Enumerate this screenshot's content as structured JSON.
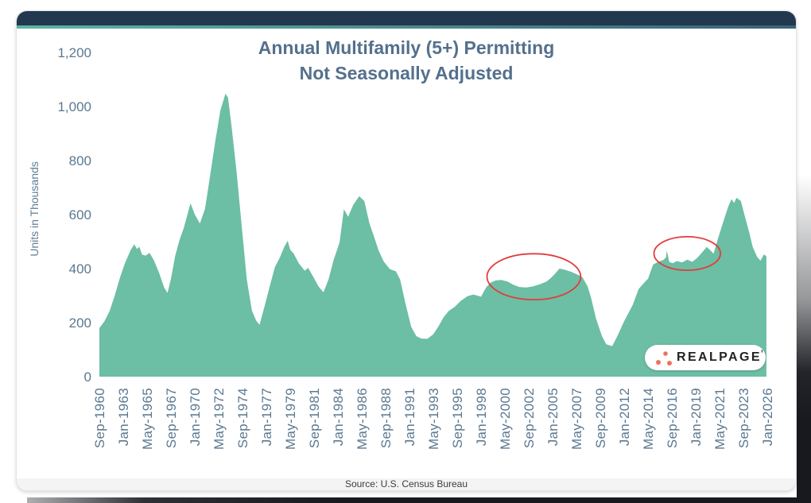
{
  "title": {
    "line1": "Annual Multifamily (5+) Permitting",
    "line2": "Not Seasonally Adjusted"
  },
  "source": {
    "text": "Source: U.S. Census Bureau"
  },
  "logo": {
    "text": "REALPAGE",
    "mark": "’"
  },
  "colors": {
    "topbar": "#21384F",
    "accent1": "#5FB4A2",
    "accent2": "#3B6377",
    "title": "#54708C",
    "tick": "#5B7890",
    "axis_title": "#5F7D93",
    "area": "#6CBEA4",
    "annotation": "#E23C3C",
    "source_bg": "#F4F4F4",
    "source_text": "#3C3C3C",
    "logo_text": "#232323",
    "logo_dots": "#F0715A",
    "card_border": "#E3E3E3"
  },
  "chart_data": {
    "type": "area",
    "title": "Annual Multifamily (5+) Permitting",
    "subtitle": "Not Seasonally Adjusted",
    "ylabel": "Units in Thousands",
    "ylim": [
      0,
      1200
    ],
    "grid": false,
    "legend": false,
    "x_start": "1960-09",
    "x_end": "2026-01",
    "y_ticks": [
      {
        "label": "1,200",
        "value": 1200
      },
      {
        "label": "1,000",
        "value": 1000
      },
      {
        "label": "800",
        "value": 800
      },
      {
        "label": "600",
        "value": 600
      },
      {
        "label": "400",
        "value": 400
      },
      {
        "label": "200",
        "value": 200
      },
      {
        "label": "0",
        "value": 0
      }
    ],
    "x_ticks": [
      "Sep-1960",
      "Jan-1963",
      "May-1965",
      "Sep-1967",
      "Jan-1970",
      "May-1972",
      "Sep-1974",
      "Jan-1977",
      "May-1979",
      "Sep-1981",
      "Jan-1984",
      "May-1986",
      "Sep-1988",
      "Jan-1991",
      "May-1993",
      "Sep-1995",
      "Jan-1998",
      "May-2000",
      "Sep-2002",
      "Jan-2005",
      "May-2007",
      "Sep-2009",
      "Jan-2012",
      "May-2014",
      "Sep-2016",
      "Jan-2019",
      "May-2021",
      "Sep-2023",
      "Jan-2026"
    ],
    "x_tick_interval_months": 28,
    "points": [
      [
        "1960-09",
        180
      ],
      [
        "1961-03",
        205
      ],
      [
        "1961-09",
        243
      ],
      [
        "1962-03",
        300
      ],
      [
        "1962-09",
        365
      ],
      [
        "1963-03",
        420
      ],
      [
        "1963-10",
        470
      ],
      [
        "1964-02",
        490
      ],
      [
        "1964-05",
        473
      ],
      [
        "1964-08",
        480
      ],
      [
        "1964-11",
        452
      ],
      [
        "1965-03",
        448
      ],
      [
        "1965-08",
        458
      ],
      [
        "1966-01",
        430
      ],
      [
        "1966-07",
        385
      ],
      [
        "1967-01",
        330
      ],
      [
        "1967-05",
        310
      ],
      [
        "1967-09",
        362
      ],
      [
        "1968-02",
        448
      ],
      [
        "1968-07",
        505
      ],
      [
        "1968-12",
        550
      ],
      [
        "1969-08",
        642
      ],
      [
        "1970-01",
        600
      ],
      [
        "1970-07",
        567
      ],
      [
        "1971-01",
        622
      ],
      [
        "1971-07",
        745
      ],
      [
        "1972-01",
        870
      ],
      [
        "1972-07",
        985
      ],
      [
        "1973-01",
        1048
      ],
      [
        "1973-04",
        1032
      ],
      [
        "1973-08",
        930
      ],
      [
        "1974-02",
        760
      ],
      [
        "1974-08",
        560
      ],
      [
        "1975-02",
        360
      ],
      [
        "1975-08",
        245
      ],
      [
        "1976-01",
        208
      ],
      [
        "1976-05",
        192
      ],
      [
        "1976-11",
        262
      ],
      [
        "1977-05",
        335
      ],
      [
        "1977-11",
        405
      ],
      [
        "1978-05",
        442
      ],
      [
        "1978-10",
        480
      ],
      [
        "1979-02",
        503
      ],
      [
        "1979-05",
        470
      ],
      [
        "1979-09",
        456
      ],
      [
        "1980-03",
        420
      ],
      [
        "1980-10",
        392
      ],
      [
        "1981-02",
        403
      ],
      [
        "1981-08",
        370
      ],
      [
        "1982-02",
        335
      ],
      [
        "1982-08",
        312
      ],
      [
        "1983-02",
        360
      ],
      [
        "1983-08",
        432
      ],
      [
        "1984-03",
        497
      ],
      [
        "1984-08",
        620
      ],
      [
        "1985-01",
        592
      ],
      [
        "1985-07",
        636
      ],
      [
        "1986-02",
        668
      ],
      [
        "1986-08",
        650
      ],
      [
        "1987-02",
        568
      ],
      [
        "1987-08",
        512
      ],
      [
        "1988-01",
        465
      ],
      [
        "1988-07",
        425
      ],
      [
        "1989-02",
        398
      ],
      [
        "1989-09",
        390
      ],
      [
        "1990-02",
        360
      ],
      [
        "1990-08",
        275
      ],
      [
        "1991-03",
        185
      ],
      [
        "1991-09",
        150
      ],
      [
        "1992-03",
        141
      ],
      [
        "1992-10",
        140
      ],
      [
        "1993-05",
        157
      ],
      [
        "1993-11",
        186
      ],
      [
        "1994-05",
        220
      ],
      [
        "1994-11",
        243
      ],
      [
        "1995-06",
        258
      ],
      [
        "1996-01",
        280
      ],
      [
        "1996-09",
        298
      ],
      [
        "1997-04",
        304
      ],
      [
        "1998-01",
        296
      ],
      [
        "1998-07",
        330
      ],
      [
        "1998-12",
        348
      ],
      [
        "1999-06",
        356
      ],
      [
        "2000-01",
        358
      ],
      [
        "2000-08",
        352
      ],
      [
        "2001-03",
        340
      ],
      [
        "2001-10",
        332
      ],
      [
        "2002-06",
        330
      ],
      [
        "2003-02",
        334
      ],
      [
        "2003-10",
        342
      ],
      [
        "2004-06",
        352
      ],
      [
        "2004-12",
        368
      ],
      [
        "2005-05",
        385
      ],
      [
        "2005-09",
        400
      ],
      [
        "2006-03",
        396
      ],
      [
        "2006-11",
        388
      ],
      [
        "2007-06",
        378
      ],
      [
        "2007-12",
        368
      ],
      [
        "2008-06",
        335
      ],
      [
        "2008-10",
        294
      ],
      [
        "2009-04",
        215
      ],
      [
        "2009-11",
        150
      ],
      [
        "2010-04",
        120
      ],
      [
        "2010-11",
        113
      ],
      [
        "2011-05",
        150
      ],
      [
        "2012-01",
        205
      ],
      [
        "2012-11",
        265
      ],
      [
        "2013-06",
        324
      ],
      [
        "2014-02",
        353
      ],
      [
        "2014-05",
        362
      ],
      [
        "2014-11",
        415
      ],
      [
        "2015-05",
        425
      ],
      [
        "2015-11",
        432
      ],
      [
        "2016-02",
        441
      ],
      [
        "2016-03",
        467
      ],
      [
        "2016-06",
        424
      ],
      [
        "2016-10",
        420
      ],
      [
        "2017-03",
        428
      ],
      [
        "2017-09",
        423
      ],
      [
        "2018-03",
        433
      ],
      [
        "2018-09",
        425
      ],
      [
        "2019-03",
        440
      ],
      [
        "2019-08",
        458
      ],
      [
        "2020-02",
        480
      ],
      [
        "2020-06",
        468
      ],
      [
        "2020-10",
        455
      ],
      [
        "2021-03",
        510
      ],
      [
        "2021-09",
        570
      ],
      [
        "2022-03",
        628
      ],
      [
        "2022-07",
        657
      ],
      [
        "2022-10",
        643
      ],
      [
        "2023-01",
        662
      ],
      [
        "2023-06",
        650
      ],
      [
        "2023-11",
        590
      ],
      [
        "2024-04",
        532
      ],
      [
        "2024-08",
        479
      ],
      [
        "2025-01",
        444
      ],
      [
        "2025-05",
        429
      ],
      [
        "2025-09",
        452
      ],
      [
        "2025-12",
        446
      ]
    ],
    "annotations": [
      {
        "shape": "ellipse",
        "date": "2003-03",
        "value": 370,
        "rx_months": 55,
        "ry_units": 85
      },
      {
        "shape": "ellipse",
        "date": "2018-03",
        "value": 456,
        "rx_months": 39,
        "ry_units": 62
      }
    ]
  }
}
